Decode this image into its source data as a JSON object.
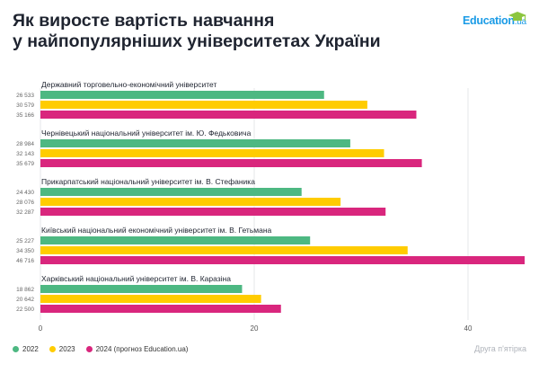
{
  "title_line1": "Як виросте вартість навчання",
  "title_line2": "у найпопулярніших університетах України",
  "logo": {
    "main": "Education",
    "suffix": ".ua",
    "icon": "graduation-cap-icon"
  },
  "footer": "Друга п'ятірка",
  "colors": {
    "2022": "#4db882",
    "2023": "#ffcc00",
    "2024": "#d9267d"
  },
  "chart_data": {
    "type": "bar",
    "orientation": "horizontal",
    "categories": [
      "Державний торговельно-економічний університет",
      "Чернівецький національний університет ім. Ю. Федьковича",
      "Прикарпатський національний університет ім. В. Стефаника",
      "Київський національний економічний університет ім. В. Гетьмана",
      "Харківський національний університет ім. В. Каразіна"
    ],
    "series": [
      {
        "name": "2022",
        "values": [
          26533,
          28984,
          24430,
          25227,
          18862
        ],
        "labels": [
          "26 533",
          "28 984",
          "24 430",
          "25 227",
          "18 862"
        ]
      },
      {
        "name": "2023",
        "values": [
          30579,
          32143,
          28076,
          34350,
          20642
        ],
        "labels": [
          "30 579",
          "32 143",
          "28 076",
          "34 350",
          "20 642"
        ]
      },
      {
        "name": "2024 (прогноз Education.ua)",
        "values": [
          35166,
          35679,
          32287,
          46716,
          22500
        ],
        "labels": [
          "35 166",
          "35 679",
          "32 287",
          "46 716",
          "22 500"
        ]
      }
    ],
    "x_ticks": [
      "0",
      "20",
      "40"
    ],
    "x_tick_values": [
      0,
      20000,
      40000
    ],
    "xlim": [
      0,
      45000
    ],
    "grid": true,
    "legend": "bottom-left"
  }
}
